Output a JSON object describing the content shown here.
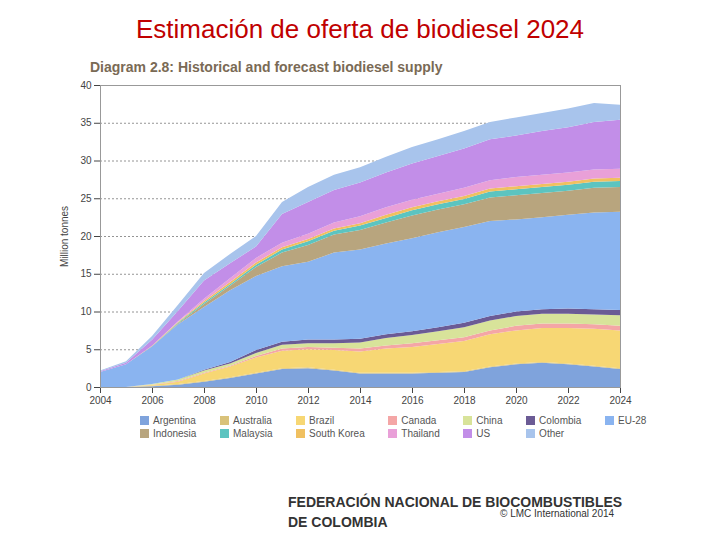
{
  "chart_data": {
    "type": "area",
    "stacked": true,
    "grid": true,
    "legend": "bottom",
    "slide_title": "Estimación de  oferta de biodiesel  2024",
    "title": "Diagram 2.8: Historical and forecast biodiesel supply",
    "y_label": "Million tonnes",
    "footer": [
      "FEDERACIÓN NACIONAL DE BIOCOMBUSTIBLES",
      "DE COLOMBIA"
    ],
    "credit": "© LMC International 2014",
    "x": [
      2004,
      2005,
      2006,
      2007,
      2008,
      2009,
      2010,
      2011,
      2012,
      2013,
      2014,
      2015,
      2016,
      2017,
      2018,
      2019,
      2020,
      2021,
      2022,
      2023,
      2024
    ],
    "xlim": [
      2004,
      2024
    ],
    "xticks": [
      2004,
      2006,
      2008,
      2010,
      2012,
      2014,
      2016,
      2018,
      2020,
      2022,
      2024
    ],
    "ylim": [
      0,
      40
    ],
    "yticks": [
      0,
      5,
      10,
      15,
      20,
      25,
      30,
      35,
      40
    ],
    "series": [
      {
        "name": "Argentina",
        "color": "#7fa3dc",
        "values": [
          0,
          0,
          0.1,
          0.3,
          0.7,
          1.2,
          1.8,
          2.4,
          2.5,
          2.2,
          1.8,
          1.8,
          1.8,
          1.9,
          2.0,
          2.6,
          3.0,
          3.2,
          3.0,
          2.7,
          2.4
        ]
      },
      {
        "name": "Australia",
        "color": "#d9c27a",
        "values": [
          0,
          0,
          0.05,
          0.1,
          0.1,
          0.1,
          0.1,
          0.1,
          0.1,
          0.1,
          0.1,
          0.1,
          0.1,
          0.1,
          0.1,
          0.1,
          0.1,
          0.1,
          0.1,
          0.1,
          0.1
        ]
      },
      {
        "name": "Brazil",
        "color": "#f7d774",
        "values": [
          0,
          0,
          0.1,
          0.3,
          1.0,
          1.4,
          2.0,
          2.3,
          2.4,
          2.6,
          2.8,
          3.2,
          3.4,
          3.7,
          4.0,
          4.3,
          4.4,
          4.5,
          4.7,
          4.9,
          5.0
        ]
      },
      {
        "name": "Canada",
        "color": "#f4a6a6",
        "values": [
          0,
          0,
          0.05,
          0.1,
          0.1,
          0.1,
          0.2,
          0.3,
          0.3,
          0.3,
          0.4,
          0.4,
          0.5,
          0.5,
          0.5,
          0.5,
          0.6,
          0.6,
          0.6,
          0.6,
          0.6
        ]
      },
      {
        "name": "China",
        "color": "#d8e39a",
        "values": [
          0,
          0,
          0.1,
          0.2,
          0.3,
          0.3,
          0.4,
          0.5,
          0.5,
          0.6,
          0.8,
          1.0,
          1.1,
          1.2,
          1.3,
          1.3,
          1.3,
          1.3,
          1.3,
          1.3,
          1.4
        ]
      },
      {
        "name": "Colombia",
        "color": "#6b5b95",
        "values": [
          0,
          0,
          0,
          0,
          0.1,
          0.2,
          0.4,
          0.4,
          0.5,
          0.5,
          0.5,
          0.5,
          0.5,
          0.5,
          0.6,
          0.6,
          0.6,
          0.6,
          0.7,
          0.7,
          0.7
        ]
      },
      {
        "name": "EU-28",
        "color": "#8ab4f0",
        "values": [
          2.0,
          3.0,
          5.0,
          7.3,
          8.3,
          9.5,
          9.8,
          10.0,
          10.3,
          11.5,
          11.8,
          12.0,
          12.3,
          12.6,
          12.7,
          12.6,
          12.2,
          12.2,
          12.4,
          12.8,
          13.0
        ]
      },
      {
        "name": "Indonesia",
        "color": "#b8a57e",
        "values": [
          0,
          0,
          0,
          0.1,
          0.4,
          0.6,
          1.2,
          1.8,
          2.2,
          2.4,
          2.6,
          2.8,
          3.0,
          3.0,
          3.0,
          3.1,
          3.2,
          3.2,
          3.2,
          3.3,
          3.3
        ]
      },
      {
        "name": "Malaysia",
        "color": "#5cc4c0",
        "values": [
          0,
          0,
          0,
          0.1,
          0.2,
          0.2,
          0.3,
          0.4,
          0.5,
          0.5,
          0.6,
          0.6,
          0.7,
          0.7,
          0.7,
          0.8,
          0.8,
          0.8,
          0.8,
          0.8,
          0.8
        ]
      },
      {
        "name": "South Korea",
        "color": "#f0c060",
        "values": [
          0,
          0,
          0.05,
          0.1,
          0.2,
          0.3,
          0.3,
          0.3,
          0.3,
          0.3,
          0.3,
          0.4,
          0.4,
          0.4,
          0.4,
          0.4,
          0.4,
          0.4,
          0.4,
          0.4,
          0.4
        ]
      },
      {
        "name": "Thailand",
        "color": "#e9a0d8",
        "values": [
          0,
          0,
          0,
          0.1,
          0.3,
          0.5,
          0.6,
          0.6,
          0.7,
          0.8,
          0.9,
          1.0,
          1.0,
          1.0,
          1.1,
          1.1,
          1.2,
          1.2,
          1.2,
          1.2,
          1.2
        ]
      },
      {
        "name": "US",
        "color": "#c28ee8",
        "values": [
          0.1,
          0.2,
          0.8,
          1.4,
          2.4,
          2.0,
          1.5,
          3.8,
          4.2,
          4.3,
          4.5,
          4.6,
          4.8,
          5.0,
          5.2,
          5.4,
          5.5,
          5.8,
          6.0,
          6.3,
          6.5
        ]
      },
      {
        "name": "Other",
        "color": "#a8c4ec",
        "values": [
          0.1,
          0.2,
          0.5,
          0.8,
          1.0,
          1.2,
          1.4,
          1.6,
          2.0,
          2.0,
          2.0,
          2.1,
          2.2,
          2.2,
          2.3,
          2.3,
          2.4,
          2.4,
          2.5,
          2.5,
          2.0
        ]
      }
    ]
  }
}
